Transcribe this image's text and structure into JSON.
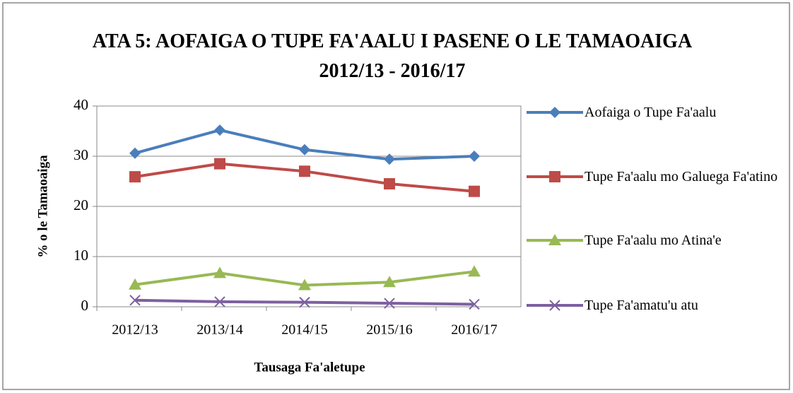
{
  "chart_data": {
    "type": "line",
    "title": "ATA 5: AOFAIGA O TUPE FA'AALU I PASENE O LE TAMAOAIGA 2012/13 - 2016/17",
    "x_label": "Tausaga Fa'aletupe",
    "y_label": "% o le Tamaoaiga",
    "categories": [
      "2012/13",
      "2013/14",
      "2014/15",
      "2015/16",
      "2016/17"
    ],
    "series": [
      {
        "name": "Aofaiga o Tupe Fa'aalu",
        "color": "#4a7ebb",
        "marker": "diamond",
        "values": [
          30.6,
          35.2,
          31.3,
          29.4,
          30.0
        ]
      },
      {
        "name": "Tupe Fa'aalu mo Galuega Fa'atino",
        "color": "#be4b48",
        "marker": "square",
        "values": [
          25.9,
          28.5,
          27.0,
          24.5,
          23.0
        ]
      },
      {
        "name": "Tupe Fa'aalu mo Atina'e",
        "color": "#98b954",
        "marker": "triangle",
        "values": [
          4.4,
          6.7,
          4.3,
          4.9,
          7.0
        ]
      },
      {
        "name": "Tupe Fa'amatu'u atu",
        "color": "#7d60a0",
        "marker": "x",
        "values": [
          1.3,
          1.0,
          0.9,
          0.7,
          0.5
        ]
      }
    ],
    "ylim": [
      0,
      40
    ],
    "yticks": [
      0,
      10,
      20,
      30,
      40
    ],
    "grid": true,
    "legend": "right"
  }
}
